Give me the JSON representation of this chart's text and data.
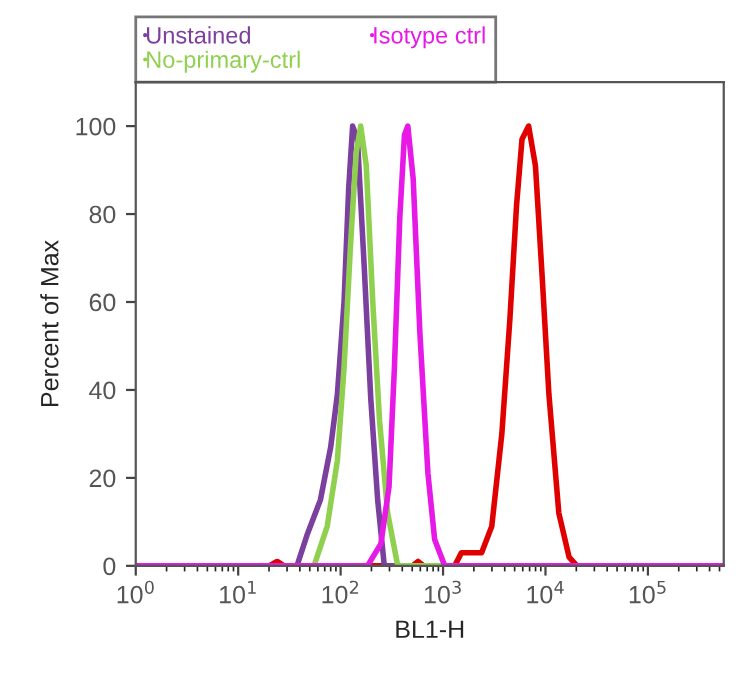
{
  "chart_data": {
    "type": "line",
    "xlabel": "BL1-H",
    "ylabel": "Percent of Max",
    "log": "x",
    "legend": "top left",
    "grid": false,
    "xlim": [
      1,
      550000
    ],
    "xticks": [
      {
        "value": 1,
        "label": "10$^{0}$"
      },
      {
        "value": 10,
        "label": "10$^{1}$"
      },
      {
        "value": 100,
        "label": "10$^{2}$"
      },
      {
        "value": 1000,
        "label": "10$^{3}$"
      },
      {
        "value": 10000,
        "label": "10$^{4}$"
      },
      {
        "value": 100000,
        "label": "10$^{5}$"
      }
    ],
    "ylim": [
      0,
      110
    ],
    "yticks": [
      0,
      20,
      40,
      60,
      80,
      100
    ],
    "series": [
      {
        "color": "#e00000",
        "x": [
          1,
          20,
          24,
          28,
          500,
          570,
          650,
          1300,
          1510,
          2380,
          2990,
          3750,
          4490,
          5220,
          5900,
          6850,
          7980,
          9270,
          10800,
          13500,
          17000,
          20300,
          550000
        ],
        "values": [
          0,
          0,
          1,
          0,
          0,
          1,
          0,
          0,
          3,
          3,
          9,
          30,
          56,
          82,
          97,
          100,
          91,
          66,
          39,
          12,
          2,
          0,
          0
        ]
      },
      {
        "name": "Unstained",
        "color": "#7b3f9e",
        "x": [
          1,
          37.5,
          47,
          63.5,
          80,
          93,
          108,
          120,
          131,
          146,
          170,
          197,
          230,
          267,
          550000
        ],
        "values": [
          0,
          0,
          7,
          15,
          27,
          39,
          60,
          86,
          100,
          97,
          68,
          38,
          15,
          0,
          0
        ]
      },
      {
        "name": "No-primary-ctrl",
        "color": "#8fd14f",
        "x": [
          1,
          55,
          74,
          93,
          108,
          125,
          142,
          157,
          178,
          206,
          240,
          288,
          361,
          550000
        ],
        "values": [
          0,
          0,
          9,
          24,
          45,
          73,
          94,
          100,
          91,
          60,
          33,
          12,
          0,
          0
        ]
      },
      {
        "name": "Isotype ctrl",
        "color": "#e619e6",
        "x": [
          1,
          183,
          247,
          297,
          335,
          378,
          420,
          453,
          511,
          594,
          712,
          828,
          1038,
          550000
        ],
        "values": [
          0,
          0,
          5,
          18,
          45,
          79,
          98,
          100,
          88,
          53,
          21,
          6,
          0,
          0
        ]
      }
    ]
  }
}
